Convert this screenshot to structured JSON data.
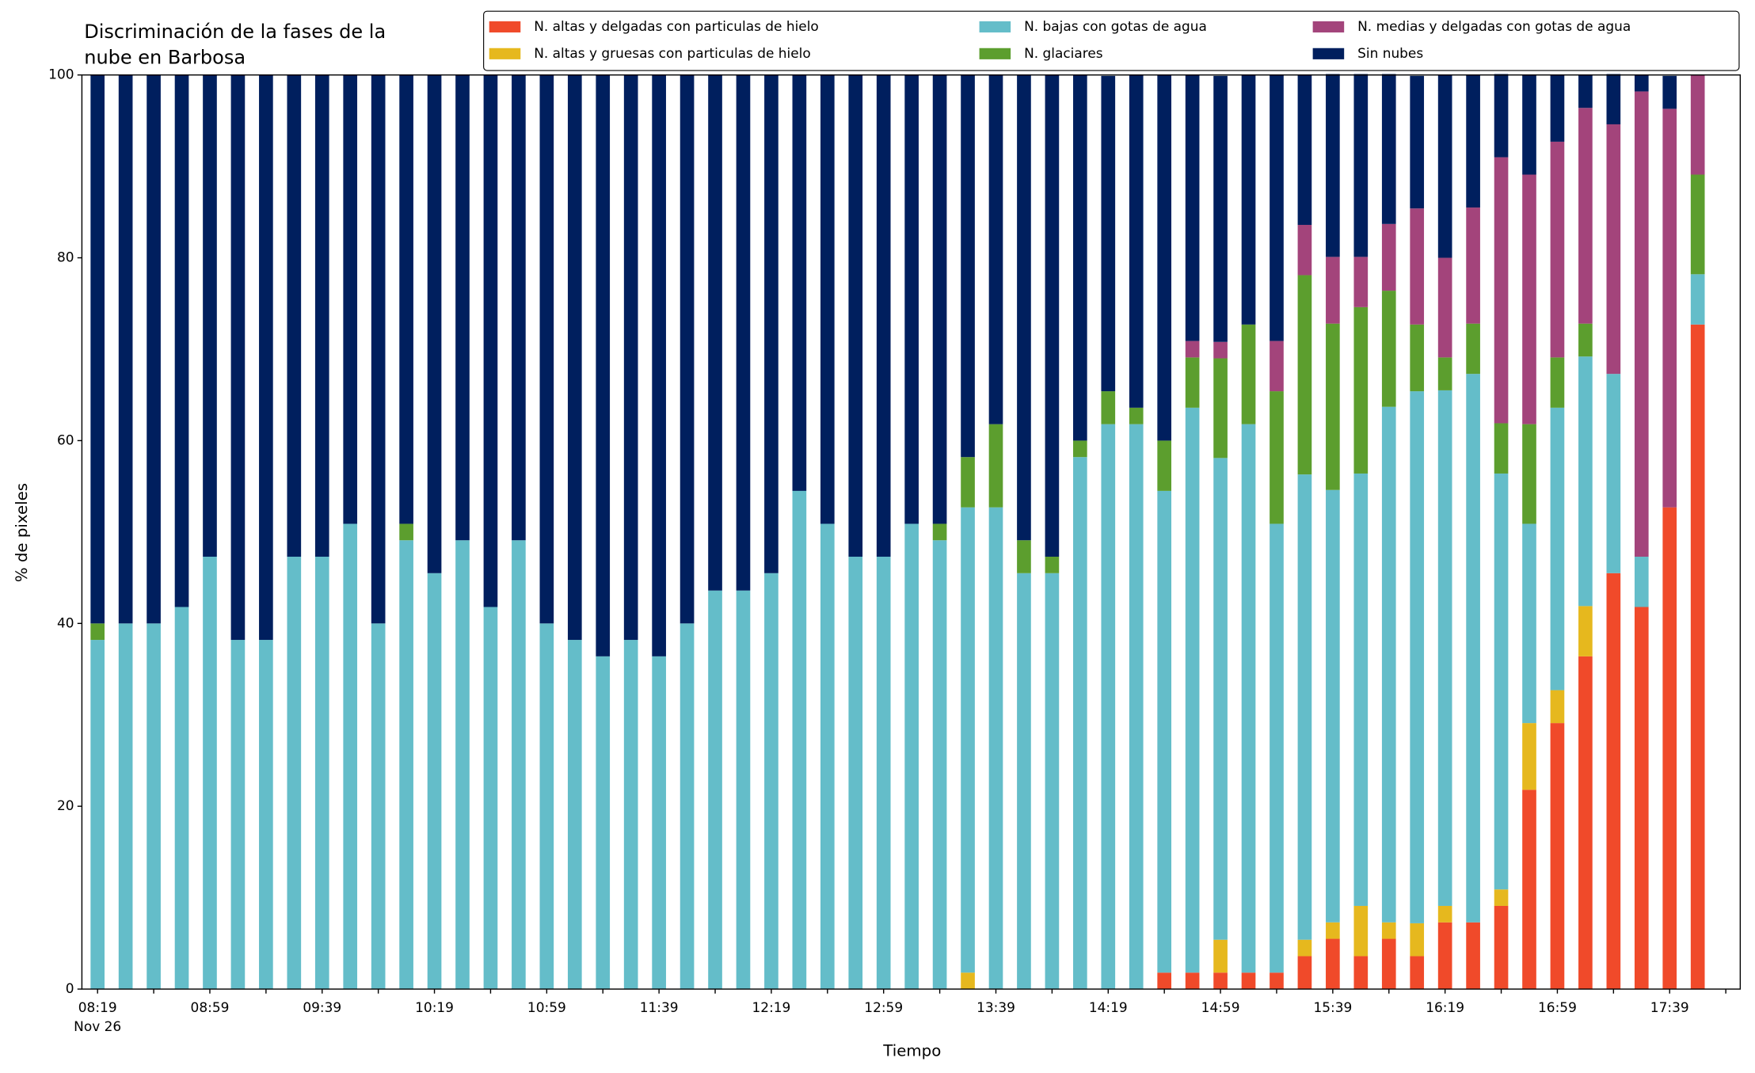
{
  "chart_data": {
    "type": "stacked_bar",
    "title": [
      "Discriminación de la fases de la",
      "nube en Barbosa"
    ],
    "xlabel": "Tiempo",
    "ylabel": "% de pixeles",
    "x_date_label": "Nov 26",
    "categories": [
      "08:19",
      null,
      null,
      null,
      "08:59",
      null,
      null,
      null,
      "09:39",
      null,
      null,
      null,
      "10:19",
      null,
      null,
      null,
      "10:59",
      null,
      null,
      null,
      "11:39",
      null,
      null,
      null,
      "12:19",
      null,
      null,
      null,
      "12:59",
      null,
      null,
      null,
      "13:39",
      null,
      null,
      null,
      "14:19",
      null,
      null,
      null,
      "14:59",
      null,
      null,
      null,
      "15:39",
      null,
      null,
      null,
      "16:19",
      null,
      null,
      null,
      "16:59",
      null,
      null,
      null,
      "17:39",
      null
    ],
    "ylim": [
      0,
      100
    ],
    "yticks": [
      0,
      20,
      40,
      60,
      80,
      100
    ],
    "series": [
      {
        "name": "N. altas y delgadas con particulas de hielo",
        "color": "#f04a2a",
        "values": [
          0,
          0,
          0,
          0,
          0,
          0,
          0,
          0,
          0,
          0,
          0,
          0,
          0,
          0,
          0,
          0,
          0,
          0,
          0,
          0,
          0,
          0,
          0,
          0,
          0,
          0,
          0,
          0,
          0,
          0,
          0,
          0,
          0,
          0,
          0,
          0,
          0,
          0,
          1.8,
          1.8,
          1.8,
          1.8,
          1.8,
          3.6,
          5.5,
          3.6,
          5.5,
          3.6,
          7.3,
          7.3,
          9.1,
          21.8,
          29.1,
          36.4,
          45.5,
          41.8,
          52.7,
          72.7
        ]
      },
      {
        "name": "N. altas y gruesas con particulas de hielo",
        "color": "#e6b81e",
        "values": [
          0,
          0,
          0,
          0,
          0,
          0,
          0,
          0,
          0,
          0,
          0,
          0,
          0,
          0,
          0,
          0,
          0,
          0,
          0,
          0,
          0,
          0,
          0,
          0,
          0,
          0,
          0,
          0,
          0,
          0,
          0,
          1.8,
          0,
          0,
          0,
          0,
          0,
          0,
          0,
          0,
          3.6,
          0,
          0,
          1.8,
          1.8,
          5.5,
          1.8,
          3.6,
          1.8,
          0,
          1.8,
          7.3,
          3.6,
          5.5,
          0,
          0,
          0,
          0
        ]
      },
      {
        "name": "N. bajas con gotas de agua",
        "color": "#64bdc9",
        "values": [
          38.2,
          40,
          40,
          41.8,
          47.3,
          38.2,
          38.2,
          47.3,
          47.3,
          50.9,
          40,
          49.1,
          45.5,
          49.1,
          41.8,
          49.1,
          40,
          38.2,
          36.4,
          38.2,
          36.4,
          40,
          43.6,
          43.6,
          45.5,
          54.5,
          50.9,
          47.3,
          47.3,
          50.9,
          49.1,
          50.9,
          52.7,
          45.5,
          45.5,
          58.2,
          61.8,
          61.8,
          52.7,
          61.8,
          52.7,
          60,
          49.1,
          50.9,
          47.3,
          47.3,
          56.4,
          58.2,
          56.4,
          60,
          45.5,
          21.8,
          30.9,
          27.3,
          21.8,
          5.5,
          0,
          5.5
        ]
      },
      {
        "name": "N. glaciares",
        "color": "#5c9e2e",
        "values": [
          1.8,
          0,
          0,
          0,
          0,
          0,
          0,
          0,
          0,
          0,
          0,
          1.8,
          0,
          0,
          0,
          0,
          0,
          0,
          0,
          0,
          0,
          0,
          0,
          0,
          0,
          0,
          0,
          0,
          0,
          0,
          1.8,
          5.5,
          9.1,
          3.6,
          1.8,
          1.8,
          3.6,
          1.8,
          5.5,
          5.5,
          10.9,
          10.9,
          14.5,
          21.8,
          18.2,
          18.2,
          12.7,
          7.3,
          3.6,
          5.5,
          5.5,
          10.9,
          5.5,
          3.6,
          0,
          0,
          0,
          10.9
        ]
      },
      {
        "name": "N. medias y delgadas con gotas de agua",
        "color": "#a3447b",
        "values": [
          0,
          0,
          0,
          0,
          0,
          0,
          0,
          0,
          0,
          0,
          0,
          0,
          0,
          0,
          0,
          0,
          0,
          0,
          0,
          0,
          0,
          0,
          0,
          0,
          0,
          0,
          0,
          0,
          0,
          0,
          0,
          0,
          0,
          0,
          0,
          0,
          0,
          0,
          0,
          1.8,
          1.8,
          0,
          5.5,
          5.5,
          7.3,
          5.5,
          7.3,
          12.7,
          10.9,
          12.7,
          29.1,
          27.3,
          23.6,
          23.6,
          27.3,
          50.9,
          43.6,
          10.9
        ]
      },
      {
        "name": "Sin nubes",
        "color": "#001f5e",
        "values": [
          60,
          60,
          60,
          58.2,
          52.7,
          61.8,
          61.8,
          52.7,
          52.7,
          49.1,
          60,
          49.1,
          54.5,
          50.9,
          58.2,
          50.9,
          60,
          61.8,
          63.6,
          61.8,
          63.6,
          60,
          56.4,
          56.4,
          54.5,
          45.5,
          49.1,
          52.7,
          52.7,
          49.1,
          49.1,
          41.8,
          38.2,
          50.9,
          52.7,
          40,
          34.5,
          36.4,
          40,
          29.1,
          29.1,
          27.3,
          29.1,
          16.4,
          20,
          20,
          16.4,
          14.5,
          20,
          14.5,
          9.1,
          10.9,
          7.3,
          3.6,
          5.5,
          1.8,
          3.6,
          0
        ]
      }
    ]
  }
}
